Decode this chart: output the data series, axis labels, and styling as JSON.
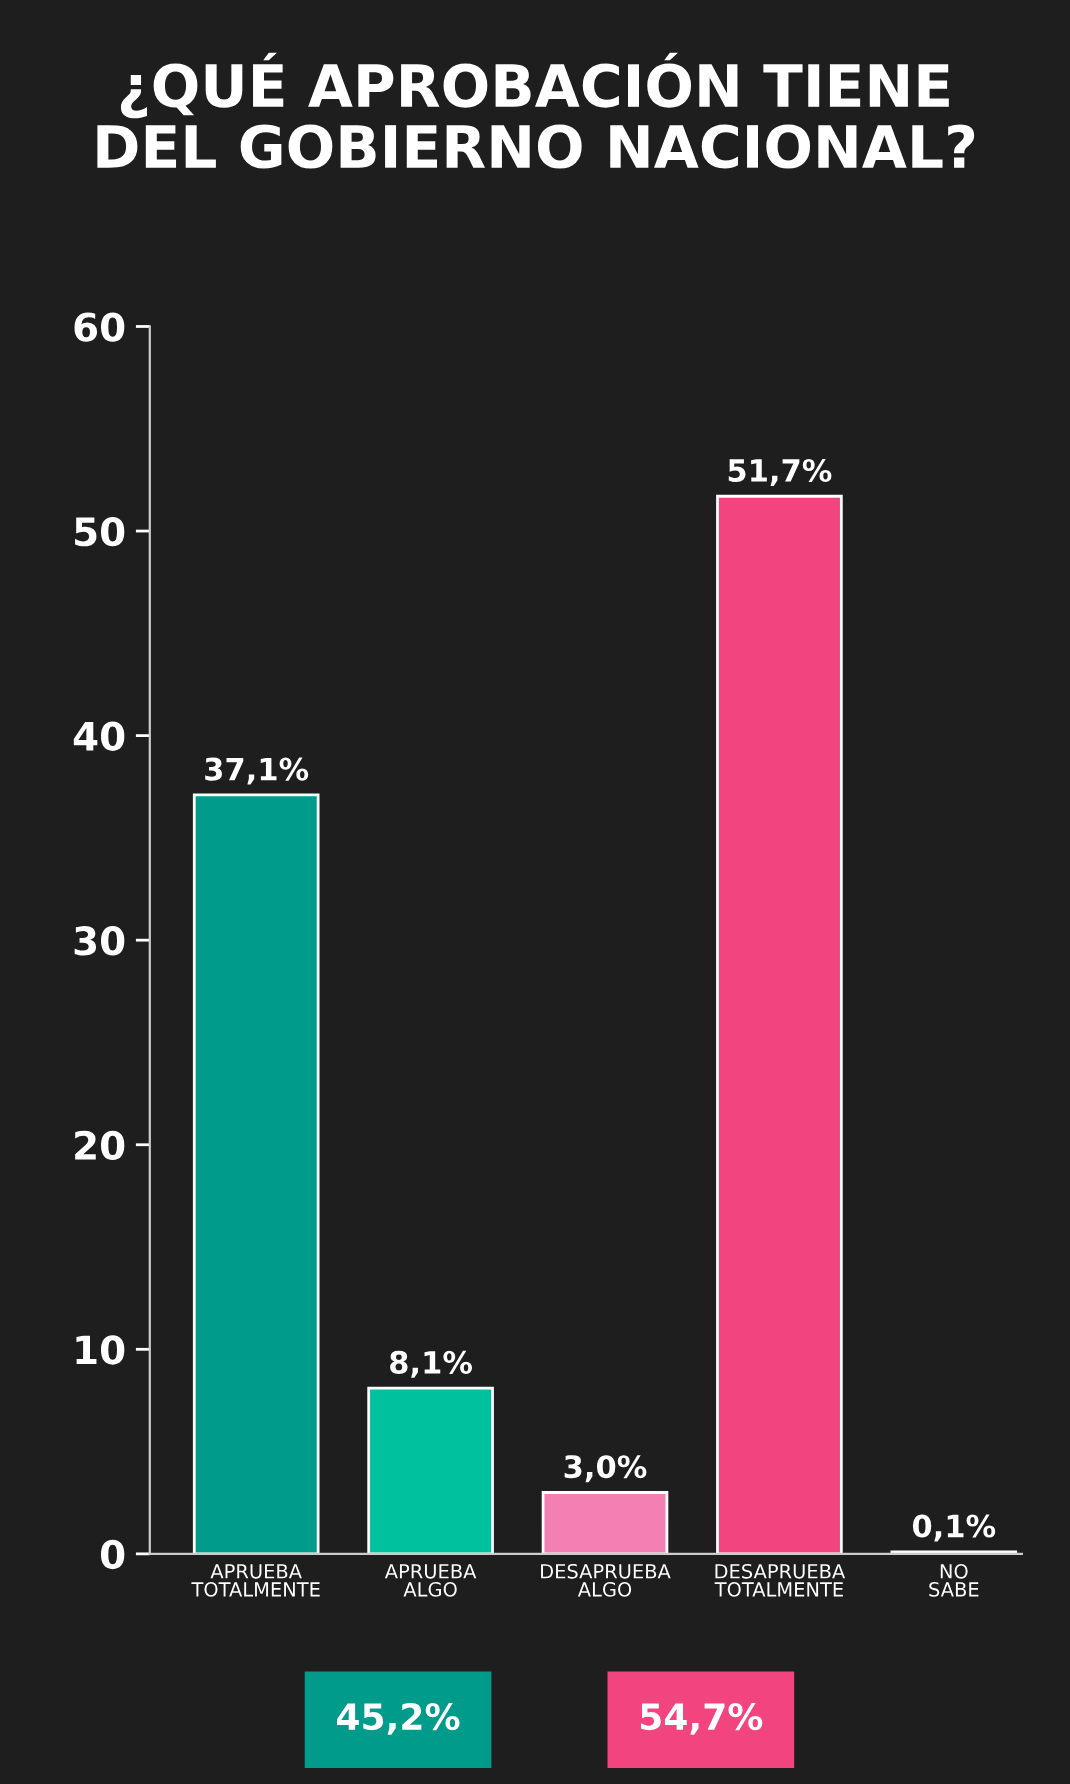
{
  "chart_data": {
    "type": "bar",
    "title": "¿QUÉ APROBACIÓN TIENE\nDEL GOBIERNO NACIONAL?",
    "categories": [
      "APRUEBA\nTOTALMENTE",
      "APRUEBA\nALGO",
      "DESAPRUEBA\nALGO",
      "DESAPRUEBA\nTOTALMENTE",
      "NO\nSABE"
    ],
    "values": [
      37.1,
      8.1,
      3.0,
      51.7,
      0.1
    ],
    "value_labels": [
      "37,1%",
      "8,1%",
      "3,0%",
      "51,7%",
      "0,1%"
    ],
    "colors": [
      "#009b8a",
      "#00c19e",
      "#f47fb2",
      "#f2457f",
      "#e8e8e8"
    ],
    "ylim": [
      0,
      60
    ],
    "yticks": [
      0,
      10,
      20,
      30,
      40,
      50,
      60
    ],
    "grid": false,
    "annotations": [
      "45,2%",
      "54,7%"
    ]
  }
}
